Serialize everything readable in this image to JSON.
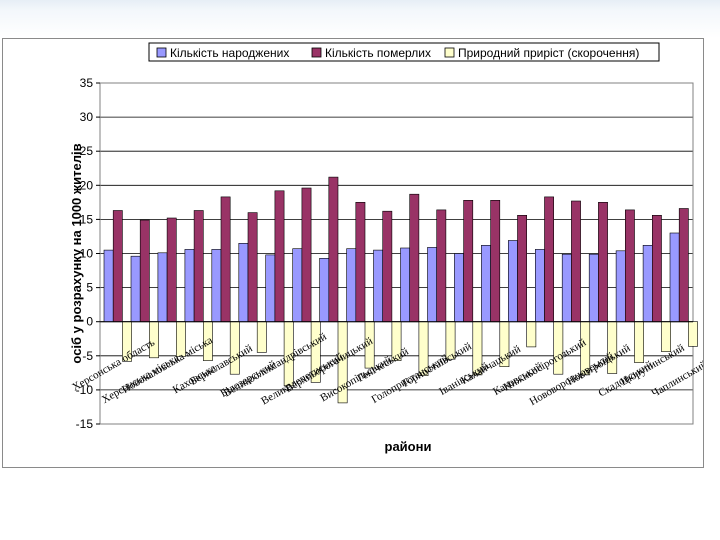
{
  "chart_data": {
    "type": "bar",
    "title": "",
    "xlabel": "райони",
    "ylabel": "осіб у розрахунку на 1000 жителів",
    "ylim": [
      -15,
      35
    ],
    "yticks": [
      -15,
      -10,
      -5,
      0,
      5,
      10,
      15,
      20,
      25,
      30,
      35
    ],
    "grid": true,
    "legend_position": "top",
    "categories": [
      "Херсонська область",
      "Херсонська міська",
      "Новокаховська міська",
      "Каховська",
      "Бериславський",
      "Білозерський",
      "Великоолександрівський",
      "Великолепетиський",
      "Верхньорогачицький",
      "Високопільський",
      "Генічеський",
      "Голопристанський",
      "Горностаївський",
      "Іванівський",
      "Каланчацький",
      "Каховський",
      "Нижньосірогозький",
      "Нововоронцовський",
      "Новотроїцький",
      "Скадовський",
      "Цюрупинський",
      "Чаплинський"
    ],
    "series": [
      {
        "name": "Кількість народжених",
        "color": "#9999ff",
        "values": [
          10.5,
          9.6,
          10.1,
          10.6,
          10.6,
          11.5,
          9.8,
          10.7,
          9.3,
          10.7,
          10.5,
          10.8,
          10.9,
          10.0,
          11.2,
          11.9,
          10.6,
          9.9,
          9.9,
          10.4,
          11.2,
          13.0
        ]
      },
      {
        "name": "Кількість померлих",
        "color": "#993366",
        "values": [
          16.3,
          14.9,
          15.2,
          16.3,
          18.3,
          16.0,
          19.2,
          19.6,
          21.2,
          17.5,
          16.2,
          18.7,
          16.4,
          17.8,
          17.8,
          15.6,
          18.3,
          17.7,
          17.5,
          16.4,
          15.6,
          16.6
        ]
      },
      {
        "name": "Природний приріст (скорочення)",
        "color": "#ffffcc",
        "values": [
          -5.8,
          -5.3,
          -5.1,
          -5.7,
          -7.7,
          -4.5,
          -9.4,
          -8.9,
          -11.9,
          -6.8,
          -5.7,
          -7.9,
          -5.5,
          -7.8,
          -6.6,
          -3.7,
          -7.7,
          -7.8,
          -7.6,
          -6.0,
          -4.4,
          -3.6
        ]
      }
    ]
  }
}
